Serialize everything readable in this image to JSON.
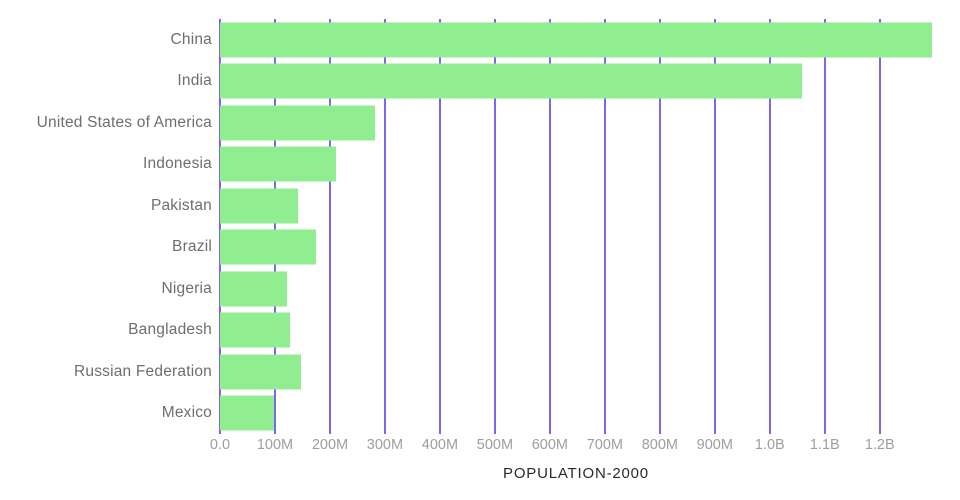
{
  "chart_data": {
    "type": "bar",
    "orientation": "horizontal",
    "title": "POPULATION-2000",
    "categories": [
      "China",
      "India",
      "United States of America",
      "Indonesia",
      "Pakistan",
      "Brazil",
      "Nigeria",
      "Bangladesh",
      "Russian Federation",
      "Mexico"
    ],
    "values_millions": [
      1295,
      1058,
      282,
      211,
      142,
      175,
      122,
      128,
      147,
      99
    ],
    "x_tick_labels": [
      "0.0",
      "100M",
      "200M",
      "300M",
      "400M",
      "500M",
      "600M",
      "700M",
      "800M",
      "900M",
      "1.0B",
      "1.1B",
      "1.2B"
    ],
    "x_tick_values_millions": [
      0,
      100,
      200,
      300,
      400,
      500,
      600,
      700,
      800,
      900,
      1000,
      1100,
      1200
    ],
    "xlim_millions": [
      0,
      1295
    ],
    "grid": "vertical-only",
    "legend": "none",
    "colors": {
      "bar": "#90ee90",
      "gridline": "#7b68ee",
      "category_label": "#6e6e6e",
      "tick_label": "#9e9e9e",
      "title": "#2a2a2a",
      "background": "#ffffff"
    }
  }
}
